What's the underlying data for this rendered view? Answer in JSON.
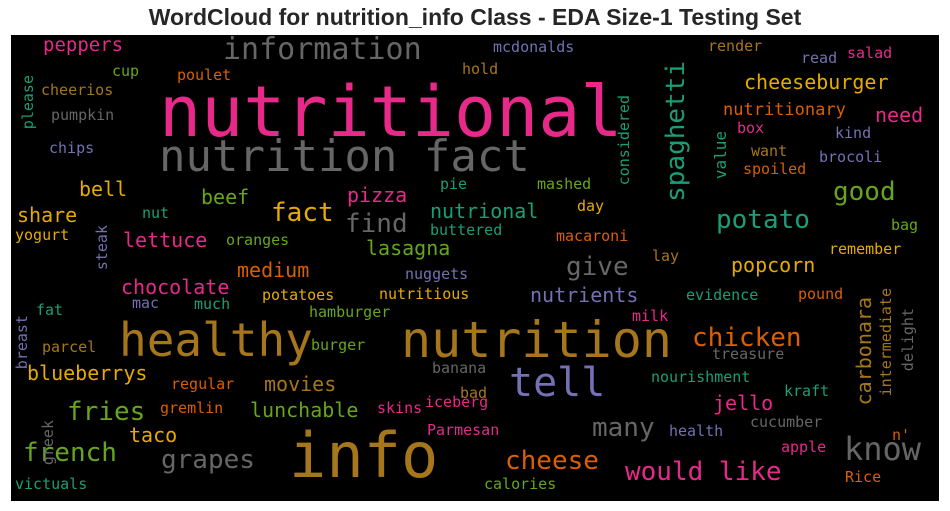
{
  "chart_data": {
    "type": "wordcloud",
    "title": "WordCloud for nutrition_info Class - EDA Size-1 Testing Set",
    "background": "#000000",
    "words": [
      {
        "text": "nutritional",
        "weight": 1.0,
        "color": "#e7298a",
        "orientation": "horizontal"
      },
      {
        "text": "nutrition fact",
        "weight": 0.62,
        "color": "#666666",
        "orientation": "horizontal"
      },
      {
        "text": "info",
        "weight": 0.85,
        "color": "#a6761d",
        "orientation": "horizontal"
      },
      {
        "text": "nutrition",
        "weight": 0.64,
        "color": "#a6761d",
        "orientation": "horizontal"
      },
      {
        "text": "healthy",
        "weight": 0.6,
        "color": "#a6761d",
        "orientation": "horizontal"
      },
      {
        "text": "tell",
        "weight": 0.5,
        "color": "#7570b3",
        "orientation": "horizontal"
      },
      {
        "text": "information",
        "weight": 0.4,
        "color": "#666666",
        "orientation": "horizontal"
      },
      {
        "text": "know",
        "weight": 0.4,
        "color": "#666666",
        "orientation": "horizontal"
      },
      {
        "text": "spaghetti",
        "weight": 0.38,
        "color": "#1b9e77",
        "orientation": "vertical"
      },
      {
        "text": "cheeseburger",
        "weight": 0.26,
        "color": "#e6ab02",
        "orientation": "horizontal"
      },
      {
        "text": "peppers",
        "weight": 0.25,
        "color": "#e7298a",
        "orientation": "horizontal"
      },
      {
        "text": "potato",
        "weight": 0.32,
        "color": "#1b9e77",
        "orientation": "horizontal"
      },
      {
        "text": "good",
        "weight": 0.32,
        "color": "#66a61e",
        "orientation": "horizontal"
      },
      {
        "text": "need",
        "weight": 0.27,
        "color": "#e7298a",
        "orientation": "horizontal"
      },
      {
        "text": "value",
        "weight": 0.22,
        "color": "#1b9e77",
        "orientation": "vertical"
      },
      {
        "text": "fact",
        "weight": 0.3,
        "color": "#e6ab02",
        "orientation": "horizontal"
      },
      {
        "text": "find",
        "weight": 0.3,
        "color": "#666666",
        "orientation": "horizontal"
      },
      {
        "text": "nutrional",
        "weight": 0.25,
        "color": "#1b9e77",
        "orientation": "horizontal"
      },
      {
        "text": "pizza",
        "weight": 0.25,
        "color": "#e7298a",
        "orientation": "horizontal"
      },
      {
        "text": "beef",
        "weight": 0.25,
        "color": "#66a61e",
        "orientation": "horizontal"
      },
      {
        "text": "bell",
        "weight": 0.25,
        "color": "#e6ab02",
        "orientation": "horizontal"
      },
      {
        "text": "share",
        "weight": 0.24,
        "color": "#e6ab02",
        "orientation": "horizontal"
      },
      {
        "text": "lettuce",
        "weight": 0.25,
        "color": "#e7298a",
        "orientation": "horizontal"
      },
      {
        "text": "lasagna",
        "weight": 0.25,
        "color": "#66a61e",
        "orientation": "horizontal"
      },
      {
        "text": "give",
        "weight": 0.3,
        "color": "#666666",
        "orientation": "horizontal"
      },
      {
        "text": "popcorn",
        "weight": 0.25,
        "color": "#e6ab02",
        "orientation": "horizontal"
      },
      {
        "text": "medium",
        "weight": 0.25,
        "color": "#d95f02",
        "orientation": "horizontal"
      },
      {
        "text": "chocolate",
        "weight": 0.25,
        "color": "#e7298a",
        "orientation": "horizontal"
      },
      {
        "text": "nutrients",
        "weight": 0.25,
        "color": "#7570b3",
        "orientation": "horizontal"
      },
      {
        "text": "chicken",
        "weight": 0.3,
        "color": "#d95f02",
        "orientation": "horizontal"
      },
      {
        "text": "carbonara",
        "weight": 0.25,
        "color": "#a6761d",
        "orientation": "vertical"
      },
      {
        "text": "blueberrys",
        "weight": 0.25,
        "color": "#e6ab02",
        "orientation": "horizontal"
      },
      {
        "text": "movies",
        "weight": 0.25,
        "color": "#a6761d",
        "orientation": "horizontal"
      },
      {
        "text": "fries",
        "weight": 0.3,
        "color": "#66a61e",
        "orientation": "horizontal"
      },
      {
        "text": "lunchable",
        "weight": 0.25,
        "color": "#66a61e",
        "orientation": "horizontal"
      },
      {
        "text": "jello",
        "weight": 0.25,
        "color": "#e7298a",
        "orientation": "horizontal"
      },
      {
        "text": "many",
        "weight": 0.3,
        "color": "#666666",
        "orientation": "horizontal"
      },
      {
        "text": "taco",
        "weight": 0.22,
        "color": "#e6ab02",
        "orientation": "horizontal"
      },
      {
        "text": "french",
        "weight": 0.3,
        "color": "#66a61e",
        "orientation": "horizontal"
      },
      {
        "text": "grapes",
        "weight": 0.3,
        "color": "#666666",
        "orientation": "horizontal"
      },
      {
        "text": "cheese",
        "weight": 0.3,
        "color": "#d95f02",
        "orientation": "horizontal"
      },
      {
        "text": "would like",
        "weight": 0.3,
        "color": "#e7298a",
        "orientation": "horizontal"
      },
      {
        "text": "mcdonalds",
        "weight": 0.15,
        "color": "#7570b3",
        "orientation": "horizontal"
      },
      {
        "text": "render",
        "weight": 0.15,
        "color": "#a6761d",
        "orientation": "horizontal"
      },
      {
        "text": "read",
        "weight": 0.15,
        "color": "#7570b3",
        "orientation": "horizontal"
      },
      {
        "text": "salad",
        "weight": 0.15,
        "color": "#e7298a",
        "orientation": "horizontal"
      },
      {
        "text": "cup",
        "weight": 0.15,
        "color": "#66a61e",
        "orientation": "horizontal"
      },
      {
        "text": "poulet",
        "weight": 0.15,
        "color": "#d95f02",
        "orientation": "horizontal"
      },
      {
        "text": "hold",
        "weight": 0.15,
        "color": "#a6761d",
        "orientation": "horizontal"
      },
      {
        "text": "cheerios",
        "weight": 0.15,
        "color": "#a6761d",
        "orientation": "horizontal"
      },
      {
        "text": "please",
        "weight": 0.15,
        "color": "#1b9e77",
        "orientation": "vertical"
      },
      {
        "text": "pumpkin",
        "weight": 0.15,
        "color": "#666666",
        "orientation": "horizontal"
      },
      {
        "text": "nutritionary",
        "weight": 0.17,
        "color": "#d95f02",
        "orientation": "horizontal"
      },
      {
        "text": "box",
        "weight": 0.15,
        "color": "#e7298a",
        "orientation": "horizontal"
      },
      {
        "text": "kind",
        "weight": 0.15,
        "color": "#7570b3",
        "orientation": "horizontal"
      },
      {
        "text": "chips",
        "weight": 0.15,
        "color": "#7570b3",
        "orientation": "horizontal"
      },
      {
        "text": "considered",
        "weight": 0.15,
        "color": "#1b9e77",
        "orientation": "vertical"
      },
      {
        "text": "want",
        "weight": 0.15,
        "color": "#a6761d",
        "orientation": "horizontal"
      },
      {
        "text": "brocoli",
        "weight": 0.15,
        "color": "#7570b3",
        "orientation": "horizontal"
      },
      {
        "text": "spoiled",
        "weight": 0.15,
        "color": "#d95f02",
        "orientation": "horizontal"
      },
      {
        "text": "pie",
        "weight": 0.15,
        "color": "#1b9e77",
        "orientation": "horizontal"
      },
      {
        "text": "mashed",
        "weight": 0.15,
        "color": "#66a61e",
        "orientation": "horizontal"
      },
      {
        "text": "day",
        "weight": 0.15,
        "color": "#e6ab02",
        "orientation": "horizontal"
      },
      {
        "text": "nut",
        "weight": 0.15,
        "color": "#1b9e77",
        "orientation": "horizontal"
      },
      {
        "text": "buttered",
        "weight": 0.15,
        "color": "#1b9e77",
        "orientation": "horizontal"
      },
      {
        "text": "bag",
        "weight": 0.15,
        "color": "#66a61e",
        "orientation": "horizontal"
      },
      {
        "text": "yogurt",
        "weight": 0.15,
        "color": "#e6ab02",
        "orientation": "horizontal"
      },
      {
        "text": "steak",
        "weight": 0.15,
        "color": "#7570b3",
        "orientation": "vertical"
      },
      {
        "text": "oranges",
        "weight": 0.15,
        "color": "#66a61e",
        "orientation": "horizontal"
      },
      {
        "text": "macaroni",
        "weight": 0.15,
        "color": "#d95f02",
        "orientation": "horizontal"
      },
      {
        "text": "remember",
        "weight": 0.15,
        "color": "#e6ab02",
        "orientation": "horizontal"
      },
      {
        "text": "lay",
        "weight": 0.15,
        "color": "#a6761d",
        "orientation": "horizontal"
      },
      {
        "text": "nuggets",
        "weight": 0.15,
        "color": "#7570b3",
        "orientation": "horizontal"
      },
      {
        "text": "pound",
        "weight": 0.15,
        "color": "#d95f02",
        "orientation": "horizontal"
      },
      {
        "text": "mac",
        "weight": 0.15,
        "color": "#7570b3",
        "orientation": "horizontal"
      },
      {
        "text": "much",
        "weight": 0.15,
        "color": "#1b9e77",
        "orientation": "horizontal"
      },
      {
        "text": "potatoes",
        "weight": 0.15,
        "color": "#e6ab02",
        "orientation": "horizontal"
      },
      {
        "text": "nutritious",
        "weight": 0.15,
        "color": "#e6ab02",
        "orientation": "horizontal"
      },
      {
        "text": "evidence",
        "weight": 0.15,
        "color": "#1b9e77",
        "orientation": "horizontal"
      },
      {
        "text": "intermediate",
        "weight": 0.15,
        "color": "#a6761d",
        "orientation": "vertical"
      },
      {
        "text": "delight",
        "weight": 0.15,
        "color": "#666666",
        "orientation": "vertical"
      },
      {
        "text": "breast",
        "weight": 0.15,
        "color": "#7570b3",
        "orientation": "vertical"
      },
      {
        "text": "fat",
        "weight": 0.15,
        "color": "#1b9e77",
        "orientation": "horizontal"
      },
      {
        "text": "hamburger",
        "weight": 0.15,
        "color": "#66a61e",
        "orientation": "horizontal"
      },
      {
        "text": "milk",
        "weight": 0.15,
        "color": "#e7298a",
        "orientation": "horizontal"
      },
      {
        "text": "parcel",
        "weight": 0.15,
        "color": "#a6761d",
        "orientation": "horizontal"
      },
      {
        "text": "burger",
        "weight": 0.15,
        "color": "#66a61e",
        "orientation": "horizontal"
      },
      {
        "text": "treasure",
        "weight": 0.15,
        "color": "#666666",
        "orientation": "horizontal"
      },
      {
        "text": "banana",
        "weight": 0.15,
        "color": "#666666",
        "orientation": "horizontal"
      },
      {
        "text": "nourishment",
        "weight": 0.15,
        "color": "#1b9e77",
        "orientation": "horizontal"
      },
      {
        "text": "regular",
        "weight": 0.15,
        "color": "#d95f02",
        "orientation": "horizontal"
      },
      {
        "text": "bad",
        "weight": 0.15,
        "color": "#a6761d",
        "orientation": "horizontal"
      },
      {
        "text": "kraft",
        "weight": 0.15,
        "color": "#1b9e77",
        "orientation": "horizontal"
      },
      {
        "text": "greek",
        "weight": 0.15,
        "color": "#666666",
        "orientation": "vertical"
      },
      {
        "text": "gremlin",
        "weight": 0.15,
        "color": "#d95f02",
        "orientation": "horizontal"
      },
      {
        "text": "skins",
        "weight": 0.15,
        "color": "#e7298a",
        "orientation": "horizontal"
      },
      {
        "text": "iceberg",
        "weight": 0.15,
        "color": "#e7298a",
        "orientation": "horizontal"
      },
      {
        "text": "cucumber",
        "weight": 0.15,
        "color": "#666666",
        "orientation": "horizontal"
      },
      {
        "text": "Parmesan",
        "weight": 0.15,
        "color": "#e7298a",
        "orientation": "horizontal"
      },
      {
        "text": "health",
        "weight": 0.15,
        "color": "#7570b3",
        "orientation": "horizontal"
      },
      {
        "text": "n'",
        "weight": 0.15,
        "color": "#d95f02",
        "orientation": "horizontal"
      },
      {
        "text": "apple",
        "weight": 0.15,
        "color": "#e7298a",
        "orientation": "horizontal"
      },
      {
        "text": "victuals",
        "weight": 0.15,
        "color": "#1b9e77",
        "orientation": "horizontal"
      },
      {
        "text": "calories",
        "weight": 0.15,
        "color": "#66a61e",
        "orientation": "horizontal"
      },
      {
        "text": "Rice",
        "weight": 0.15,
        "color": "#d95f02",
        "orientation": "horizontal"
      }
    ]
  }
}
